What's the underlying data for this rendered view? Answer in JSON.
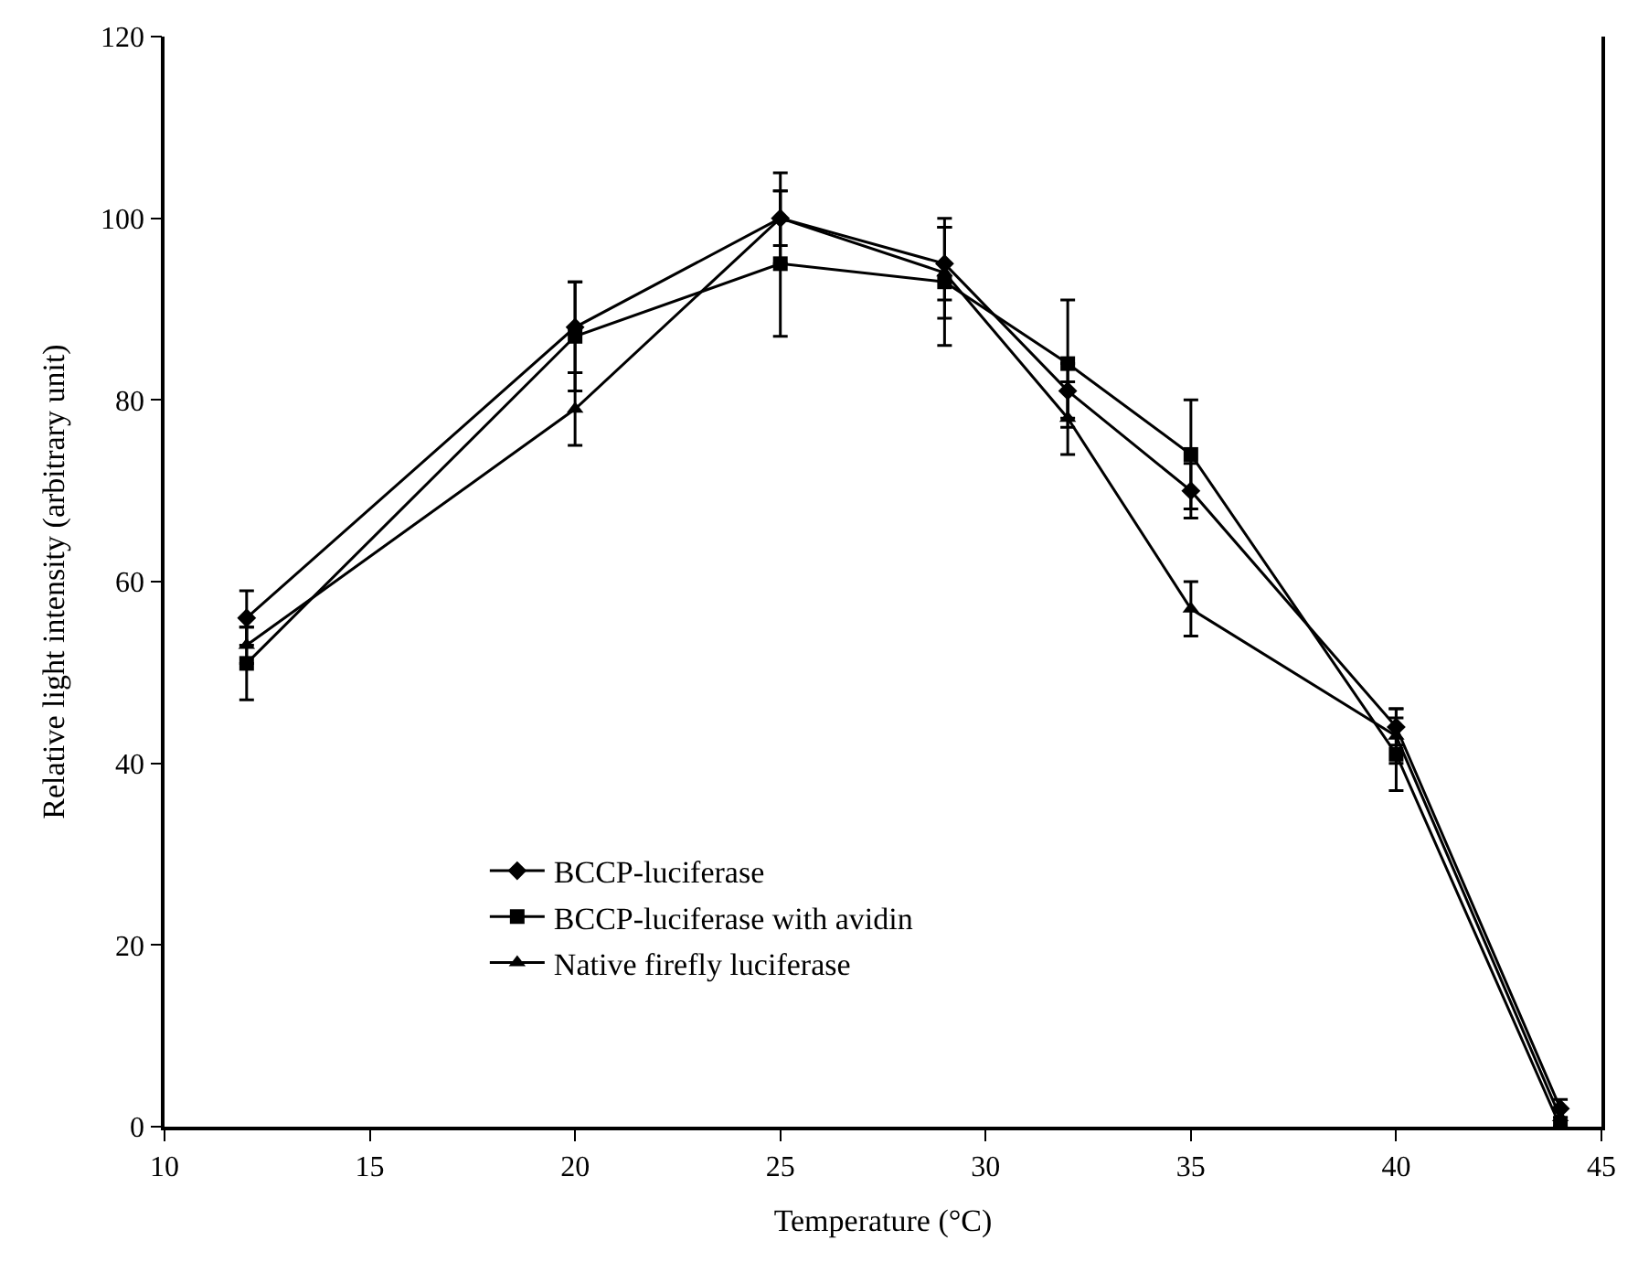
{
  "chart_data": {
    "type": "line",
    "xlabel": "Temperature (°C)",
    "ylabel": "Relative light intensity (arbitrary unit)",
    "x": [
      12,
      20,
      25,
      29,
      32,
      35,
      40,
      44
    ],
    "xlim": [
      10,
      45
    ],
    "xticks": [
      10,
      15,
      20,
      25,
      30,
      35,
      40,
      45
    ],
    "ylim": [
      0,
      120
    ],
    "yticks": [
      0,
      20,
      40,
      60,
      80,
      100,
      120
    ],
    "legend": "bottom left",
    "line_style": "solid",
    "series": [
      {
        "name": "BCCP-luciferase",
        "color": "#000000",
        "marker": "diamond",
        "values": [
          56,
          88,
          100,
          95,
          81,
          70,
          44,
          2
        ],
        "errors": [
          3,
          5,
          5,
          4,
          3,
          3,
          2,
          1
        ]
      },
      {
        "name": "BCCP-luciferase with avidin",
        "color": "#000000",
        "marker": "square",
        "values": [
          51,
          87,
          95,
          93,
          84,
          74,
          41,
          0
        ],
        "errors": [
          4,
          6,
          8,
          7,
          7,
          6,
          4,
          null
        ]
      },
      {
        "name": "Native firefly luciferase",
        "color": "#000000",
        "marker": "triangle",
        "values": [
          53,
          79,
          100,
          94,
          78,
          57,
          43,
          1
        ],
        "errors": [
          2,
          4,
          3,
          5,
          4,
          3,
          3,
          null
        ]
      }
    ]
  }
}
